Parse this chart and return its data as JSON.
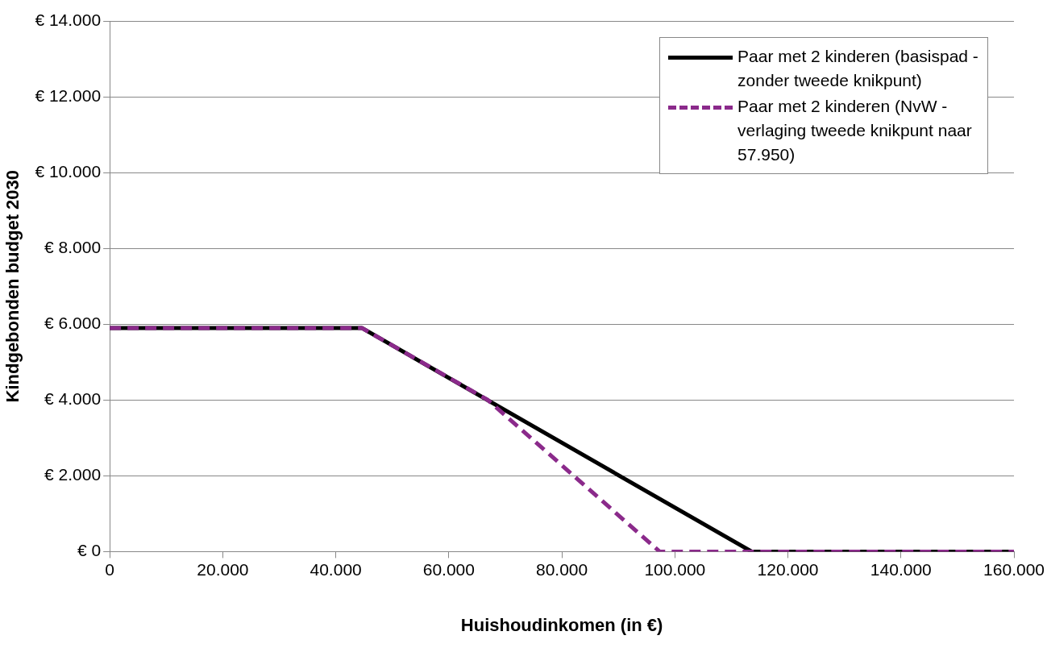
{
  "chart_data": {
    "type": "line",
    "xlabel": "Huishoudinkomen (in €)",
    "ylabel": "Kindgebonden budget 2030",
    "xlim": [
      0,
      160000
    ],
    "xticks": [
      {
        "value": 0,
        "label": "0"
      },
      {
        "value": 20000,
        "label": "20.000"
      },
      {
        "value": 40000,
        "label": "40.000"
      },
      {
        "value": 60000,
        "label": "60.000"
      },
      {
        "value": 80000,
        "label": "80.000"
      },
      {
        "value": 100000,
        "label": "100.000"
      },
      {
        "value": 120000,
        "label": "120.000"
      },
      {
        "value": 140000,
        "label": "140.000"
      },
      {
        "value": 160000,
        "label": "160.000"
      }
    ],
    "ylim": [
      0,
      14000
    ],
    "yticks": [
      {
        "value": 0,
        "label": "€ 0"
      },
      {
        "value": 2000,
        "label": "€ 2.000"
      },
      {
        "value": 4000,
        "label": "€ 4.000"
      },
      {
        "value": 6000,
        "label": "€ 6.000"
      },
      {
        "value": 8000,
        "label": "€ 8.000"
      },
      {
        "value": 10000,
        "label": "€ 10.000"
      },
      {
        "value": 12000,
        "label": "€ 12.000"
      },
      {
        "value": 14000,
        "label": "€ 14.000"
      }
    ],
    "grid": "y",
    "legend": "top right",
    "marker": "none",
    "series": [
      {
        "name": "Paar met 2 kinderen (basispad - zonder tweede knikpunt)",
        "color": "#000000",
        "line_style": "solid",
        "x": [
          0,
          44600,
          113600,
          160000
        ],
        "values": [
          5900,
          5900,
          0,
          0
        ]
      },
      {
        "name": "Paar met 2 kinderen (NvW - verlaging tweede knikpunt naar 57.950)",
        "color": "#8b2a8b",
        "line_style": "dashed",
        "x": [
          0,
          44600,
          66900,
          97300,
          160000
        ],
        "values": [
          5900,
          5900,
          4000,
          0,
          0
        ]
      }
    ]
  }
}
